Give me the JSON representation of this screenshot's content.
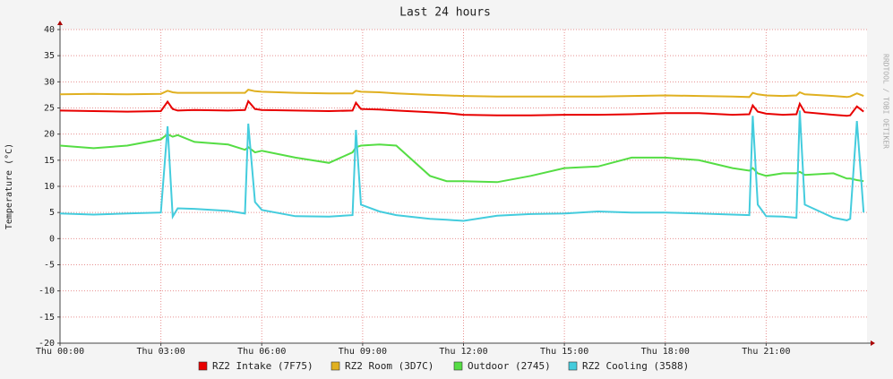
{
  "chart_data": {
    "type": "line",
    "title": "Last 24 hours",
    "y_label": "Temperature (°C)",
    "watermark": "RRDTOOL / TOBI OETIKER",
    "x": [
      0,
      1,
      2,
      3,
      3.2,
      3.35,
      3.5,
      4,
      5,
      5.5,
      5.6,
      5.8,
      6,
      7,
      8,
      8.7,
      8.8,
      8.95,
      9.5,
      10,
      11,
      11.5,
      12,
      13,
      14,
      15,
      16,
      17,
      18,
      19,
      20,
      20.5,
      20.6,
      20.75,
      21,
      21.5,
      21.9,
      22.0,
      22.15,
      23,
      23.4,
      23.5,
      23.7,
      23.9
    ],
    "xlim": [
      0,
      24
    ],
    "xticks": [
      {
        "value": 0,
        "label": "Thu 00:00"
      },
      {
        "value": 3,
        "label": "Thu 03:00"
      },
      {
        "value": 6,
        "label": "Thu 06:00"
      },
      {
        "value": 9,
        "label": "Thu 09:00"
      },
      {
        "value": 12,
        "label": "Thu 12:00"
      },
      {
        "value": 15,
        "label": "Thu 15:00"
      },
      {
        "value": 18,
        "label": "Thu 18:00"
      },
      {
        "value": 21,
        "label": "Thu 21:00"
      }
    ],
    "ylim": [
      -20,
      40
    ],
    "yticks": [
      -20,
      -15,
      -10,
      -5,
      0,
      5,
      10,
      15,
      20,
      25,
      30,
      35,
      40
    ],
    "grid": true,
    "series": [
      {
        "name": "RZ2 Intake (7F75)",
        "color": "#e80000",
        "values": [
          24.5,
          24.4,
          24.3,
          24.4,
          26.2,
          24.8,
          24.5,
          24.6,
          24.5,
          24.6,
          26.3,
          24.8,
          24.6,
          24.5,
          24.4,
          24.5,
          26.0,
          24.8,
          24.7,
          24.5,
          24.2,
          24.0,
          23.7,
          23.6,
          23.6,
          23.7,
          23.7,
          23.8,
          24.0,
          24.0,
          23.7,
          23.8,
          25.5,
          24.3,
          23.9,
          23.7,
          23.8,
          25.8,
          24.2,
          23.7,
          23.5,
          23.6,
          25.3,
          24.3
        ]
      },
      {
        "name": "RZ2 Room (3D7C)",
        "color": "#e0b020",
        "values": [
          27.6,
          27.7,
          27.6,
          27.7,
          28.3,
          28.0,
          27.9,
          27.9,
          27.9,
          27.9,
          28.5,
          28.2,
          28.1,
          27.9,
          27.8,
          27.8,
          28.3,
          28.1,
          28.0,
          27.8,
          27.5,
          27.4,
          27.3,
          27.2,
          27.2,
          27.2,
          27.2,
          27.3,
          27.4,
          27.3,
          27.2,
          27.1,
          27.9,
          27.6,
          27.4,
          27.3,
          27.4,
          28.0,
          27.6,
          27.3,
          27.1,
          27.2,
          27.8,
          27.3
        ]
      },
      {
        "name": "Outdoor (2745)",
        "color": "#55dd44",
        "values": [
          17.8,
          17.3,
          17.8,
          19.0,
          20.0,
          19.5,
          19.8,
          18.5,
          18.0,
          17.0,
          17.5,
          16.5,
          16.8,
          15.5,
          14.5,
          16.5,
          17.5,
          17.8,
          18.0,
          17.8,
          12.0,
          11.0,
          11.0,
          10.8,
          12.0,
          13.5,
          13.8,
          15.5,
          15.5,
          15.0,
          13.5,
          13.0,
          13.5,
          12.5,
          12.0,
          12.5,
          12.5,
          12.8,
          12.2,
          12.5,
          11.5,
          11.5,
          11.2,
          11.0
        ]
      },
      {
        "name": "RZ2 Cooling (3588)",
        "color": "#44ccdd",
        "values": [
          4.8,
          4.6,
          4.8,
          5.0,
          21.5,
          4.2,
          5.8,
          5.7,
          5.3,
          4.8,
          22.0,
          7.0,
          5.5,
          4.3,
          4.2,
          4.5,
          20.8,
          6.5,
          5.2,
          4.5,
          3.8,
          3.6,
          3.4,
          4.4,
          4.7,
          4.8,
          5.2,
          5.0,
          5.0,
          4.8,
          4.6,
          4.5,
          23.5,
          6.5,
          4.3,
          4.2,
          4.0,
          24.5,
          6.5,
          4.0,
          3.5,
          3.8,
          22.5,
          5.0
        ]
      }
    ]
  }
}
